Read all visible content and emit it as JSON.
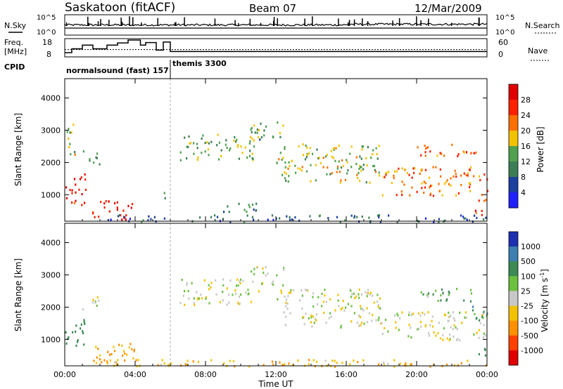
{
  "header": {
    "station": "Saskatoon (fitACF)",
    "beam": "Beam 07",
    "date": "12/Mar/2009"
  },
  "chart_data": [
    {
      "type": "line",
      "panel": "noise",
      "left_label": "N.Sky",
      "right_label": "N.Search",
      "y_ticks_left": [
        "10^5",
        "10^0"
      ],
      "y_ticks_right": [
        "10^5",
        "10^0"
      ]
    },
    {
      "type": "line",
      "panel": "frequency",
      "left_label_lines": [
        "Freq.",
        "[MHz]"
      ],
      "right_label": "Nave",
      "y_ticks_left": [
        "18",
        "8"
      ],
      "y_ticks_right": [
        "60",
        "0"
      ],
      "freq_steps": [
        {
          "x": 0.0,
          "y": 10.5
        },
        {
          "x": 0.4,
          "y": 12.8
        },
        {
          "x": 1.0,
          "y": 15.0
        },
        {
          "x": 1.6,
          "y": 12.8
        },
        {
          "x": 2.4,
          "y": 15.0
        },
        {
          "x": 3.0,
          "y": 16.3
        },
        {
          "x": 3.6,
          "y": 18.0
        },
        {
          "x": 4.3,
          "y": 15.0
        },
        {
          "x": 4.6,
          "y": 16.5
        },
        {
          "x": 5.2,
          "y": 12.0
        },
        {
          "x": 5.6,
          "y": 16.8
        },
        {
          "x": 6.0,
          "y": 11.2
        },
        {
          "x": 24.0,
          "y": 11.2
        }
      ],
      "nave_level": 12.3
    },
    {
      "type": "table",
      "panel": "cpid",
      "label": "CPID",
      "programs": [
        {
          "name": "normalsound (fast) 157",
          "start": 0.0,
          "end": 6.0
        },
        {
          "name": "themis 3300",
          "start": 6.0,
          "end": 24.0
        }
      ]
    },
    {
      "type": "heatmap",
      "panel": "power",
      "ylabel": "Slant Range [km]",
      "xlabel": "",
      "x_ticks": [
        "00:00",
        "04:00",
        "08:00",
        "12:00",
        "16:00",
        "20:00",
        "00:00"
      ],
      "y_ticks": [
        1000,
        2000,
        3000,
        4000
      ],
      "ylim": [
        180,
        4600
      ],
      "xlim": [
        0,
        24
      ],
      "colorbar": {
        "label": "Power [dB]",
        "ticks": [
          "4",
          "8",
          "12",
          "16",
          "20",
          "24",
          "28"
        ],
        "colors": [
          "#2020ff",
          "#1c3fa0",
          "#3c7d55",
          "#50a050",
          "#f2c200",
          "#ff7000",
          "#ff2000",
          "#e00000"
        ]
      },
      "echo_regions": [
        {
          "t0": 0.0,
          "t1": 1.2,
          "r0": 700,
          "r1": 1700,
          "level": 28
        },
        {
          "t0": 0.1,
          "t1": 0.6,
          "r0": 2000,
          "r1": 3300,
          "level": 16
        },
        {
          "t0": 1.0,
          "t1": 2.0,
          "r0": 1900,
          "r1": 2400,
          "level": 14
        },
        {
          "t0": 1.5,
          "t1": 3.8,
          "r0": 250,
          "r1": 900,
          "level": 28
        },
        {
          "t0": 5.5,
          "t1": 6.0,
          "r0": 900,
          "r1": 1100,
          "level": 10
        },
        {
          "t0": 6.5,
          "t1": 11.0,
          "r0": 2100,
          "r1": 2900,
          "level": 14
        },
        {
          "t0": 9.0,
          "t1": 11.5,
          "r0": 500,
          "r1": 800,
          "level": 12
        },
        {
          "t0": 10.5,
          "t1": 12.5,
          "r0": 2700,
          "r1": 3300,
          "level": 12
        },
        {
          "t0": 12.0,
          "t1": 18.0,
          "r0": 1400,
          "r1": 2600,
          "level": 16
        },
        {
          "t0": 18.0,
          "t1": 24.0,
          "r0": 1000,
          "r1": 1900,
          "level": 22
        },
        {
          "t0": 20.0,
          "t1": 23.5,
          "r0": 2200,
          "r1": 2600,
          "level": 24
        },
        {
          "t0": 23.2,
          "t1": 24.0,
          "r0": 400,
          "r1": 900,
          "level": 26
        },
        {
          "t0": 2.0,
          "t1": 24.0,
          "r0": 180,
          "r1": 400,
          "level": 8
        }
      ]
    },
    {
      "type": "heatmap",
      "panel": "velocity",
      "ylabel": "Slant Range [km]",
      "xlabel": "Time UT",
      "x_ticks": [
        "00:00",
        "04:00",
        "08:00",
        "12:00",
        "16:00",
        "20:00",
        "00:00"
      ],
      "y_ticks": [
        1000,
        2000,
        3000,
        4000
      ],
      "ylim": [
        180,
        4600
      ],
      "xlim": [
        0,
        24
      ],
      "colorbar": {
        "label": "Velocity [m s",
        "label_sup": "-1",
        "label_close": "]",
        "ticks": [
          "1000",
          "500",
          "100",
          "25",
          "-25",
          "-100",
          "-500",
          "-1000"
        ],
        "colors": [
          "#1c2fb0",
          "#3c7fb0",
          "#3c8a55",
          "#6cc040",
          "#c8c8c8",
          "#f2c200",
          "#ff9000",
          "#ff4000",
          "#e00000"
        ]
      },
      "echo_regions": [
        {
          "t0": 0.0,
          "t1": 1.2,
          "r0": 800,
          "r1": 1700,
          "vel": 120
        },
        {
          "t0": 1.5,
          "t1": 4.2,
          "r0": 250,
          "r1": 900,
          "vel": -90
        },
        {
          "t0": 1.0,
          "t1": 2.0,
          "r0": 1900,
          "r1": 2400,
          "vel": 0
        },
        {
          "t0": 6.5,
          "t1": 11.0,
          "r0": 2100,
          "r1": 2900,
          "vel": 0
        },
        {
          "t0": 10.5,
          "t1": 12.5,
          "r0": 2700,
          "r1": 3300,
          "vel": 0
        },
        {
          "t0": 12.0,
          "t1": 18.0,
          "r0": 1400,
          "r1": 2600,
          "vel": 0
        },
        {
          "t0": 18.0,
          "t1": 24.0,
          "r0": 1000,
          "r1": 1900,
          "vel": 0
        },
        {
          "t0": 20.0,
          "t1": 23.5,
          "r0": 2200,
          "r1": 2600,
          "vel": 60
        },
        {
          "t0": 23.0,
          "t1": 24.0,
          "r0": 1600,
          "r1": 2100,
          "vel": 300
        },
        {
          "t0": 23.3,
          "t1": 24.0,
          "r0": 500,
          "r1": 900,
          "vel": 150
        },
        {
          "t0": 2.0,
          "t1": 24.0,
          "r0": 180,
          "r1": 400,
          "vel": -80
        }
      ]
    }
  ]
}
